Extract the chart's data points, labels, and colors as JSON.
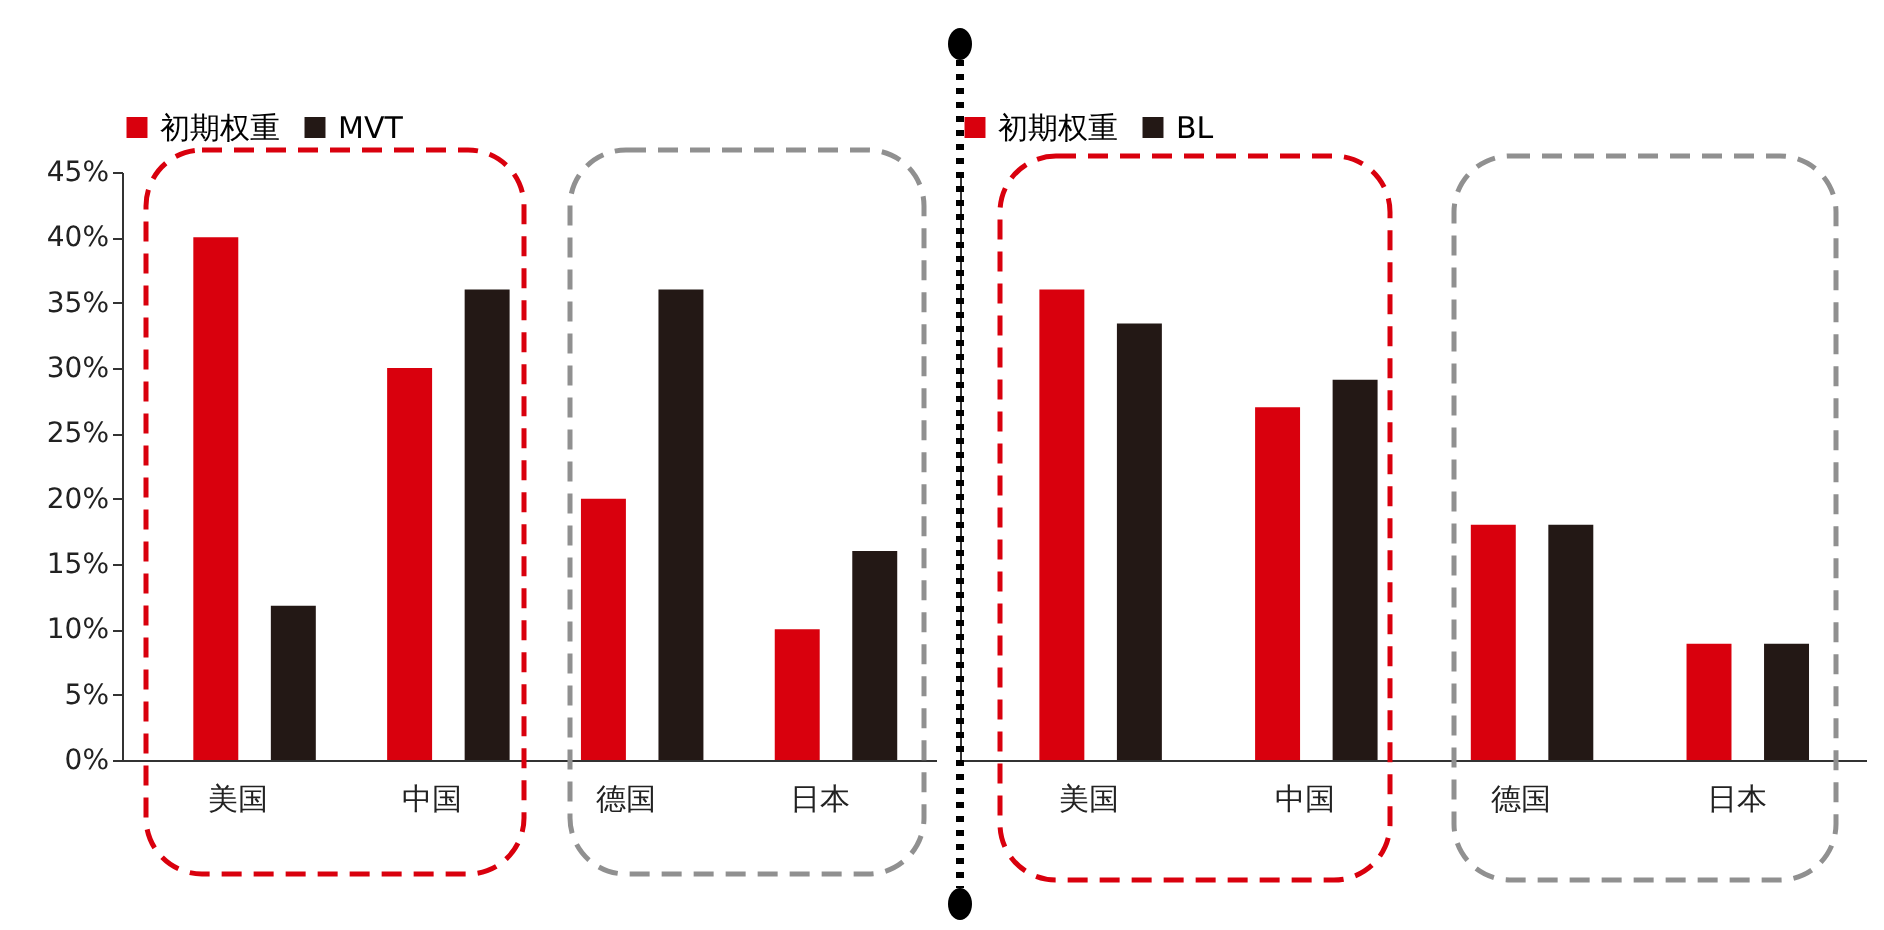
{
  "chart_data": [
    {
      "type": "bar",
      "categories": [
        "美国",
        "中国",
        "德国",
        "日本"
      ],
      "series": [
        {
          "name": "初期权重",
          "color": "#d9000d",
          "values": [
            40,
            30,
            20,
            10
          ]
        },
        {
          "name": "MVT",
          "color": "#231815",
          "values": [
            11.8,
            36,
            36,
            16
          ]
        }
      ],
      "ylim": [
        0,
        45
      ],
      "yticks": [
        {
          "value": 0,
          "label": "0%"
        },
        {
          "value": 5,
          "label": "5%"
        },
        {
          "value": 10,
          "label": "10%"
        },
        {
          "value": 15,
          "label": "15%"
        },
        {
          "value": 20,
          "label": "20%"
        },
        {
          "value": 25,
          "label": "25%"
        },
        {
          "value": 30,
          "label": "30%"
        },
        {
          "value": 35,
          "label": "35%"
        },
        {
          "value": 40,
          "label": "40%"
        },
        {
          "value": 45,
          "label": "45%"
        }
      ],
      "legend": "top",
      "grid": false
    },
    {
      "type": "bar",
      "categories": [
        "美国",
        "中国",
        "德国",
        "日本"
      ],
      "series": [
        {
          "name": "初期权重",
          "color": "#d9000d",
          "values": [
            36,
            27,
            18,
            8.9
          ]
        },
        {
          "name": "BL",
          "color": "#231815",
          "values": [
            33.4,
            29.1,
            18,
            8.9
          ]
        }
      ],
      "ylim": [
        0,
        45
      ],
      "tick_labels": "x",
      "legend": "top",
      "grid": false
    }
  ]
}
